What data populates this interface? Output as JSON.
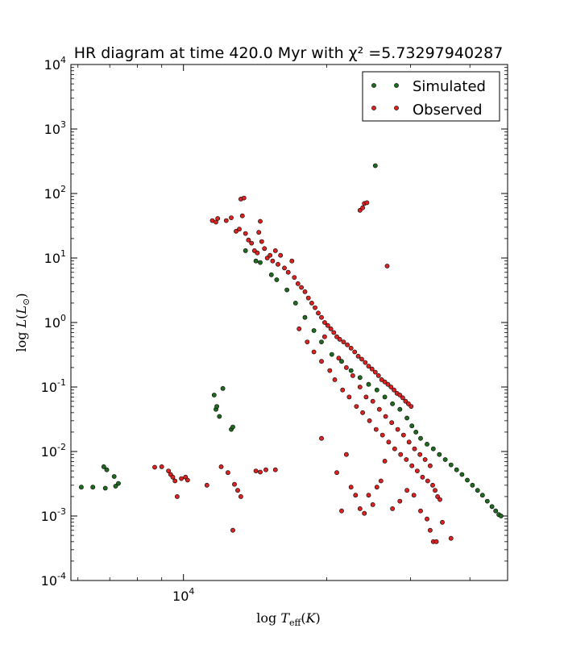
{
  "chart_data": {
    "type": "scatter",
    "title": "HR diagram at time 420.0 Myr with χ² =5.73297940287",
    "xlabel": "log T_eff(K)",
    "ylabel": "log L(L_⊙)",
    "x_scale": "log",
    "y_scale": "log",
    "xlim": [
      5800,
      48000
    ],
    "ylim": [
      0.0001,
      10000
    ],
    "x_tick_labels": [
      {
        "value": 10000,
        "label": "10^4"
      }
    ],
    "y_tick_labels": [
      {
        "value": 0.0001,
        "label": "10^-4"
      },
      {
        "value": 0.001,
        "label": "10^-3"
      },
      {
        "value": 0.01,
        "label": "10^-2"
      },
      {
        "value": 0.1,
        "label": "10^-1"
      },
      {
        "value": 1,
        "label": "10^0"
      },
      {
        "value": 10,
        "label": "10^1"
      },
      {
        "value": 100,
        "label": "10^2"
      },
      {
        "value": 1000,
        "label": "10^3"
      },
      {
        "value": 10000,
        "label": "10^4"
      }
    ],
    "grid": false,
    "legend_position": "top-right",
    "series": [
      {
        "name": "Simulated",
        "color": "#1f6b1f",
        "points": [
          [
            6100,
            0.0028
          ],
          [
            6450,
            0.0028
          ],
          [
            6800,
            0.0058
          ],
          [
            6900,
            0.0052
          ],
          [
            6850,
            0.0027
          ],
          [
            7150,
            0.0041
          ],
          [
            7200,
            0.0029
          ],
          [
            7300,
            0.0032
          ],
          [
            11600,
            0.075
          ],
          [
            11700,
            0.045
          ],
          [
            11750,
            0.05
          ],
          [
            11900,
            0.035
          ],
          [
            12100,
            0.095
          ],
          [
            12600,
            0.022
          ],
          [
            12700,
            0.024
          ],
          [
            13500,
            13
          ],
          [
            14200,
            9
          ],
          [
            14500,
            8.5
          ],
          [
            15300,
            5.5
          ],
          [
            15700,
            4.6
          ],
          [
            16500,
            3.2
          ],
          [
            17200,
            2
          ],
          [
            18000,
            1.2
          ],
          [
            18800,
            0.75
          ],
          [
            19500,
            0.5
          ],
          [
            20500,
            0.32
          ],
          [
            21500,
            0.25
          ],
          [
            22500,
            0.18
          ],
          [
            23500,
            0.14
          ],
          [
            24500,
            0.11
          ],
          [
            25500,
            0.09
          ],
          [
            26500,
            0.07
          ],
          [
            27500,
            0.055
          ],
          [
            28500,
            0.045
          ],
          [
            29500,
            0.033
          ],
          [
            30200,
            0.025
          ],
          [
            30800,
            0.02
          ],
          [
            31500,
            0.016
          ],
          [
            32500,
            0.013
          ],
          [
            33500,
            0.011
          ],
          [
            34500,
            0.009
          ],
          [
            35500,
            0.0075
          ],
          [
            36500,
            0.0062
          ],
          [
            37500,
            0.0052
          ],
          [
            38500,
            0.0044
          ],
          [
            39500,
            0.0036
          ],
          [
            40500,
            0.003
          ],
          [
            41500,
            0.0025
          ],
          [
            42500,
            0.0021
          ],
          [
            43500,
            0.0017
          ],
          [
            44500,
            0.0014
          ],
          [
            45300,
            0.0012
          ],
          [
            46000,
            0.00105
          ],
          [
            46500,
            0.001
          ],
          [
            25300,
            270
          ]
        ]
      },
      {
        "name": "Observed",
        "color": "#dd2222",
        "points": [
          [
            11500,
            38
          ],
          [
            11700,
            36
          ],
          [
            11800,
            41
          ],
          [
            12300,
            38
          ],
          [
            12600,
            42
          ],
          [
            12900,
            26
          ],
          [
            13100,
            28
          ],
          [
            13300,
            45
          ],
          [
            13200,
            82
          ],
          [
            13400,
            85
          ],
          [
            13500,
            24
          ],
          [
            13700,
            19
          ],
          [
            13900,
            17
          ],
          [
            14100,
            13
          ],
          [
            14300,
            12
          ],
          [
            14400,
            25
          ],
          [
            14500,
            37
          ],
          [
            14600,
            18
          ],
          [
            14800,
            14
          ],
          [
            15000,
            10
          ],
          [
            15200,
            11
          ],
          [
            15400,
            9
          ],
          [
            15600,
            13
          ],
          [
            15800,
            8
          ],
          [
            16000,
            11
          ],
          [
            16300,
            7
          ],
          [
            16600,
            6
          ],
          [
            16900,
            9
          ],
          [
            17100,
            5
          ],
          [
            17400,
            4
          ],
          [
            17700,
            3.5
          ],
          [
            18000,
            3
          ],
          [
            18300,
            2.4
          ],
          [
            18600,
            2
          ],
          [
            18900,
            1.7
          ],
          [
            19200,
            1.4
          ],
          [
            19500,
            1.2
          ],
          [
            19800,
            1.0
          ],
          [
            20100,
            0.9
          ],
          [
            20400,
            0.8
          ],
          [
            20700,
            0.7
          ],
          [
            21000,
            0.6
          ],
          [
            21300,
            0.55
          ],
          [
            21700,
            0.5
          ],
          [
            22100,
            0.45
          ],
          [
            22500,
            0.4
          ],
          [
            22900,
            0.35
          ],
          [
            23300,
            0.3
          ],
          [
            23700,
            0.27
          ],
          [
            24100,
            0.24
          ],
          [
            24500,
            0.21
          ],
          [
            24900,
            0.19
          ],
          [
            25300,
            0.17
          ],
          [
            25700,
            0.15
          ],
          [
            26100,
            0.13
          ],
          [
            26500,
            0.12
          ],
          [
            26900,
            0.11
          ],
          [
            27300,
            0.1
          ],
          [
            27700,
            0.09
          ],
          [
            28100,
            0.08
          ],
          [
            28500,
            0.075
          ],
          [
            28900,
            0.068
          ],
          [
            29300,
            0.06
          ],
          [
            29700,
            0.055
          ],
          [
            30100,
            0.05
          ],
          [
            17500,
            0.8
          ],
          [
            18200,
            0.5
          ],
          [
            18800,
            0.35
          ],
          [
            19500,
            0.25
          ],
          [
            19800,
            0.6
          ],
          [
            20300,
            0.18
          ],
          [
            20800,
            0.13
          ],
          [
            21200,
            0.28
          ],
          [
            21600,
            0.09
          ],
          [
            22000,
            0.2
          ],
          [
            22300,
            0.07
          ],
          [
            22700,
            0.15
          ],
          [
            23100,
            0.05
          ],
          [
            23500,
            0.1
          ],
          [
            23800,
            0.04
          ],
          [
            24200,
            0.07
          ],
          [
            24600,
            0.03
          ],
          [
            25000,
            0.06
          ],
          [
            25400,
            0.022
          ],
          [
            25800,
            0.045
          ],
          [
            26200,
            0.018
          ],
          [
            26600,
            0.035
          ],
          [
            27000,
            0.014
          ],
          [
            27400,
            0.028
          ],
          [
            27800,
            0.011
          ],
          [
            28200,
            0.022
          ],
          [
            28600,
            0.009
          ],
          [
            29000,
            0.018
          ],
          [
            29400,
            0.0075
          ],
          [
            29800,
            0.014
          ],
          [
            30200,
            0.006
          ],
          [
            30600,
            0.011
          ],
          [
            31000,
            0.005
          ],
          [
            31400,
            0.009
          ],
          [
            31800,
            0.004
          ],
          [
            32200,
            0.0075
          ],
          [
            32600,
            0.0035
          ],
          [
            33000,
            0.006
          ],
          [
            33400,
            0.003
          ],
          [
            33800,
            0.0025
          ],
          [
            34200,
            0.002
          ],
          [
            34600,
            0.0018
          ],
          [
            19500,
            0.016
          ],
          [
            21000,
            0.0047
          ],
          [
            21500,
            0.0012
          ],
          [
            22000,
            0.009
          ],
          [
            22500,
            0.0028
          ],
          [
            23000,
            0.0021
          ],
          [
            23500,
            0.0013
          ],
          [
            24000,
            0.0011
          ],
          [
            24500,
            0.0021
          ],
          [
            25000,
            0.0015
          ],
          [
            25500,
            0.0028
          ],
          [
            26000,
            0.0035
          ],
          [
            26500,
            0.0071
          ],
          [
            27500,
            0.0013
          ],
          [
            28500,
            0.0017
          ],
          [
            29500,
            0.0025
          ],
          [
            30500,
            0.0021
          ],
          [
            31500,
            0.0012
          ],
          [
            32500,
            0.0009
          ],
          [
            33000,
            0.0006
          ],
          [
            33500,
            0.0004
          ],
          [
            34000,
            0.0004
          ],
          [
            35000,
            0.0008
          ],
          [
            36500,
            0.00045
          ],
          [
            23500,
            55
          ],
          [
            23800,
            60
          ],
          [
            24000,
            70
          ],
          [
            24300,
            72
          ],
          [
            26800,
            7.5
          ],
          [
            8700,
            0.0057
          ],
          [
            9000,
            0.0058
          ],
          [
            9300,
            0.005
          ],
          [
            9400,
            0.0044
          ],
          [
            9500,
            0.004
          ],
          [
            9600,
            0.0035
          ],
          [
            9700,
            0.002
          ],
          [
            9900,
            0.0038
          ],
          [
            10100,
            0.004
          ],
          [
            10200,
            0.0036
          ],
          [
            11200,
            0.003
          ],
          [
            12000,
            0.0058
          ],
          [
            12400,
            0.0047
          ],
          [
            12800,
            0.0031
          ],
          [
            13000,
            0.0025
          ],
          [
            13200,
            0.002
          ],
          [
            12700,
            0.0006
          ],
          [
            14200,
            0.005
          ],
          [
            14500,
            0.0048
          ],
          [
            14900,
            0.0052
          ],
          [
            15600,
            0.0052
          ]
        ]
      }
    ]
  },
  "legend": {
    "entries": [
      "Simulated",
      "Observed"
    ]
  }
}
